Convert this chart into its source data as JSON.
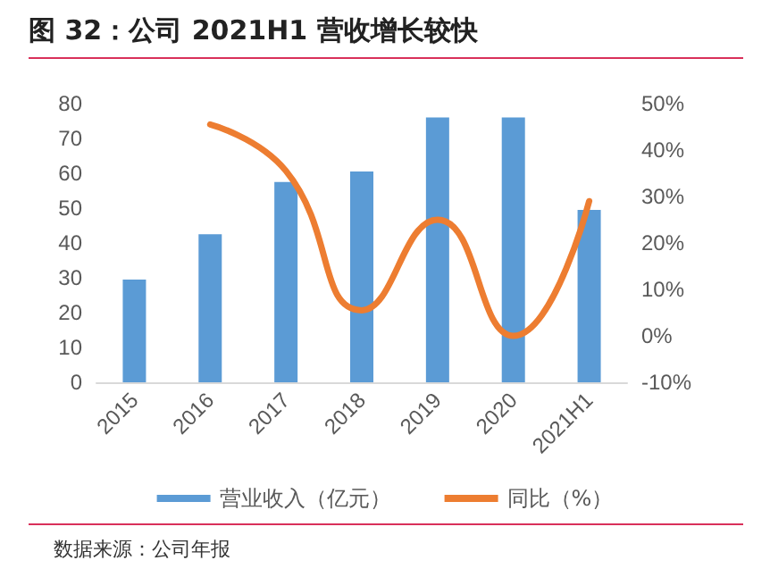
{
  "chart_data": {
    "type": "bar",
    "title": "图 32：公司 2021H1 营收增长较快",
    "categories": [
      "2015",
      "2016",
      "2017",
      "2018",
      "2019",
      "2020",
      "2021H1"
    ],
    "series": [
      {
        "name": "营业收入（亿元）",
        "color": "#5b9bd5",
        "values": [
          29.5,
          42.5,
          57.5,
          60.5,
          76,
          76,
          49.5
        ]
      },
      {
        "name": "同比（%）",
        "type": "line",
        "axis": "y2",
        "color": "#ed7d31",
        "values": [
          null,
          45.5,
          35.5,
          5.5,
          25,
          0,
          29
        ]
      }
    ],
    "ylim": [
      0,
      80
    ],
    "yticks": [
      0,
      10,
      20,
      30,
      40,
      50,
      60,
      70,
      80
    ],
    "y2lim": [
      -10,
      50
    ],
    "y2ticks": [
      {
        "value": -10,
        "label": "-10%"
      },
      {
        "value": 0,
        "label": "0%"
      },
      {
        "value": 10,
        "label": "10%"
      },
      {
        "value": 20,
        "label": "20%"
      },
      {
        "value": 30,
        "label": "30%"
      },
      {
        "value": 40,
        "label": "40%"
      },
      {
        "value": 50,
        "label": "50%"
      }
    ],
    "grid": false,
    "legend": "bottom",
    "marker": "none",
    "line_style": "solid",
    "annotations": [
      "数据来源：公司年报"
    ]
  }
}
